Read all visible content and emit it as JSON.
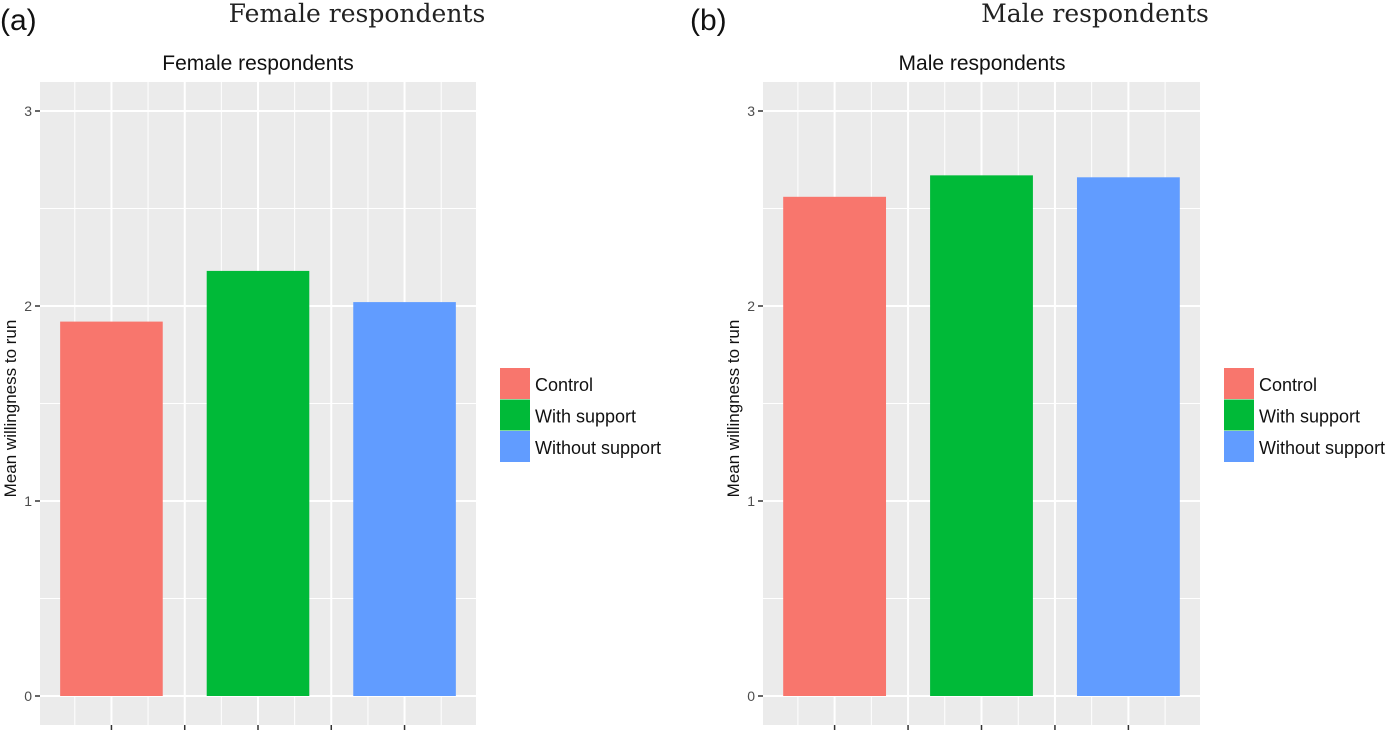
{
  "chart_data": [
    {
      "type": "bar",
      "panel_label": "(a)",
      "caption": "Female respondents",
      "title": "Female respondents",
      "xlabel": "",
      "ylabel": "Mean willingness to run",
      "categories": [
        "Control",
        "With support",
        "Without support"
      ],
      "values": [
        1.92,
        2.18,
        2.02
      ],
      "colors": [
        "#F8766D",
        "#00BA38",
        "#619CFF"
      ],
      "ylim": [
        0,
        3
      ],
      "yticks": [
        0,
        1,
        2,
        3
      ],
      "grid": true,
      "legend_position": "right"
    },
    {
      "type": "bar",
      "panel_label": "(b)",
      "caption": "Male respondents",
      "title": "Male respondents",
      "xlabel": "",
      "ylabel": "Mean willingness to run",
      "categories": [
        "Control",
        "With support",
        "Without support"
      ],
      "values": [
        2.56,
        2.67,
        2.66
      ],
      "colors": [
        "#F8766D",
        "#00BA38",
        "#619CFF"
      ],
      "ylim": [
        0,
        3
      ],
      "yticks": [
        0,
        1,
        2,
        3
      ],
      "grid": true,
      "legend_position": "right"
    }
  ]
}
